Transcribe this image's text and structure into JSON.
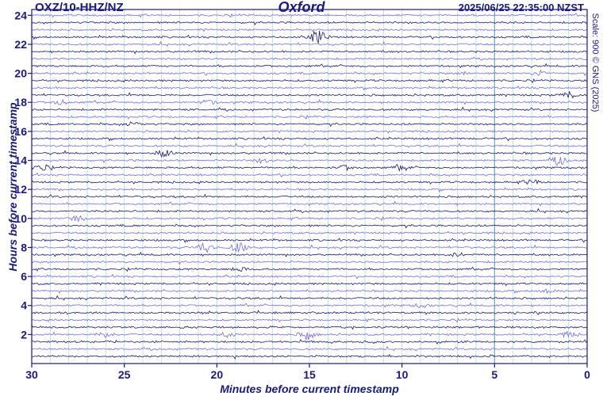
{
  "header": {
    "station": "OXZ/10-HHZ/NZ",
    "location": "Oxford",
    "timestamp": "2025/06/25 22:35:00 NZST"
  },
  "scale_note": "Scale: 900 © GNS (2025)",
  "colors": {
    "trace_dark": "#1a1a6e",
    "trace_light": "#7b68d8",
    "grid": "#b8d8e0",
    "border": "#1a1a7a",
    "text": "#1a1a7a"
  },
  "chart_data": {
    "type": "line",
    "title": "Oxford",
    "xlabel": "Minutes before current timestamp",
    "ylabel": "Hours before current timestamp",
    "xlim": [
      30,
      0
    ],
    "ylim": [
      0,
      24.4
    ],
    "x_ticks": [
      30,
      25,
      20,
      15,
      10,
      5,
      0
    ],
    "x_tick_labels": [
      "30",
      "25",
      "20",
      "15",
      "10",
      "5",
      "0"
    ],
    "y_ticks": [
      2,
      4,
      6,
      8,
      10,
      12,
      14,
      16,
      18,
      20,
      22,
      24
    ],
    "y_tick_labels": [
      "2",
      "4",
      "6",
      "8",
      "10",
      "12",
      "14",
      "16",
      "18",
      "20",
      "22",
      "24"
    ],
    "trace_interval_hours": 0.5,
    "series": [
      {
        "color": "dark",
        "hours": [
          0.5,
          1.5,
          2.5,
          3.5,
          4.5,
          5.5,
          6.5,
          7.5,
          8.5,
          9.5,
          10.5,
          11.5,
          12.5,
          13.5,
          14.5,
          15.5,
          16.5,
          17.5,
          18.5,
          19.5,
          20.5,
          21.5,
          22.5,
          23.5
        ]
      },
      {
        "color": "light",
        "hours": [
          1,
          2,
          3,
          4,
          5,
          6,
          7,
          8,
          9,
          10,
          11,
          12,
          13,
          14,
          15,
          16,
          17,
          18,
          19,
          20,
          21,
          22,
          23,
          24
        ]
      }
    ],
    "events": [
      {
        "minute": 14.5,
        "hour": 22.3,
        "amp": 9
      },
      {
        "minute": 20.6,
        "hour": 7.8,
        "amp": 7,
        "color": "light"
      },
      {
        "minute": 18.8,
        "hour": 7.8,
        "amp": 6,
        "color": "light"
      },
      {
        "minute": 15.1,
        "hour": 2.2,
        "amp": 6
      },
      {
        "minute": 22.8,
        "hour": 14.3,
        "amp": 5
      },
      {
        "minute": 29.5,
        "hour": 13.3,
        "amp": 4
      },
      {
        "minute": 1.5,
        "hour": 14.0,
        "amp": 5,
        "color": "light"
      },
      {
        "minute": 20.5,
        "hour": 17.8,
        "amp": 3,
        "color": "light"
      },
      {
        "minute": 1.0,
        "hour": 18.3,
        "amp": 4
      },
      {
        "minute": 28.5,
        "hour": 17.8,
        "amp": 3,
        "color": "light"
      },
      {
        "minute": 13.0,
        "hour": 13.3,
        "amp": 3
      },
      {
        "minute": 10.0,
        "hour": 13.3,
        "amp": 3
      },
      {
        "minute": 2.5,
        "hour": 20.0,
        "amp": 3,
        "color": "light"
      },
      {
        "minute": 19.5,
        "hour": 2.2,
        "amp": 3
      },
      {
        "minute": 3.0,
        "hour": 12.3,
        "amp": 3
      },
      {
        "minute": 26.0,
        "hour": 2.2,
        "amp": 3
      },
      {
        "minute": 17.5,
        "hour": 14.0,
        "amp": 3,
        "color": "light"
      },
      {
        "minute": 18.8,
        "hour": 6.3,
        "amp": 3
      },
      {
        "minute": 27.5,
        "hour": 9.8,
        "amp": 3,
        "color": "light"
      },
      {
        "minute": 6.5,
        "hour": 20.0,
        "amp": 2
      },
      {
        "minute": 7.0,
        "hour": 7.3,
        "amp": 2
      },
      {
        "minute": 2.2,
        "hour": 5.2,
        "amp": 2
      },
      {
        "minute": 1.0,
        "hour": 1.8,
        "amp": 3,
        "color": "light"
      },
      {
        "minute": 9.0,
        "hour": 3.8,
        "amp": 2,
        "color": "light"
      },
      {
        "minute": 24.5,
        "hour": 16.3,
        "amp": 3
      }
    ]
  }
}
